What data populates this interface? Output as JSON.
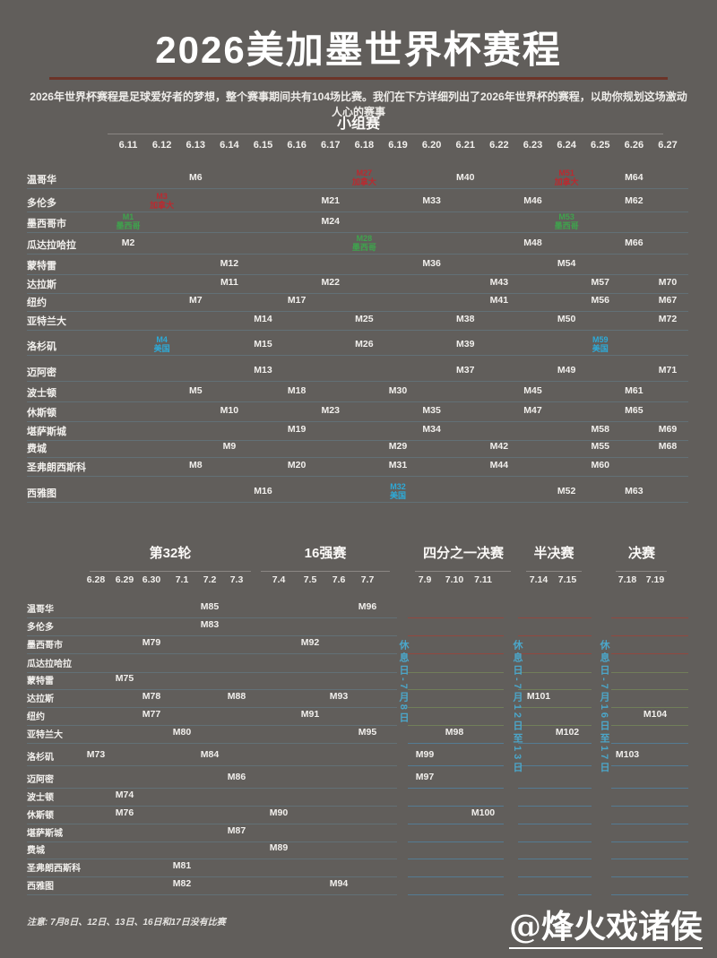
{
  "page": {
    "title": "2026美加墨世界杯赛程",
    "subtitle": "2026年世界杯赛程是足球爱好者的梦想，整个赛事期间共有104场比赛。我们在下方详细列出了2026年世界杯的赛程，以助你规划这场激动人心的赛事",
    "note": "注意: 7月8日、12日、13日、16日和17日没有比赛",
    "watermark": "@烽火戏诸侯"
  },
  "colors": {
    "background": "#615E5B",
    "title_divider": "#6C3328",
    "host_mexico": "#3FA34D",
    "host_canada": "#BA2A30",
    "host_usa": "#2EA9D6",
    "rest_day_text": "#4BA6C9"
  },
  "cities": [
    "温哥华",
    "多伦多",
    "墨西哥市",
    "瓜达拉哈拉",
    "蒙特雷",
    "达拉斯",
    "纽约",
    "亚特兰大",
    "洛杉矶",
    "迈阿密",
    "波士顿",
    "休斯顿",
    "堪萨斯城",
    "费城",
    "圣弗朗西斯科",
    "西雅图"
  ],
  "group_stage": {
    "title": "小组赛",
    "dates": [
      "6.11",
      "6.12",
      "6.13",
      "6.14",
      "6.15",
      "6.16",
      "6.17",
      "6.18",
      "6.19",
      "6.20",
      "6.21",
      "6.22",
      "6.23",
      "6.24",
      "6.25",
      "6.26",
      "6.27"
    ],
    "matches": [
      {
        "city": "温哥华",
        "date": "6.13",
        "m": "M6"
      },
      {
        "city": "温哥华",
        "date": "6.18",
        "m": "M27",
        "host": "加拿大"
      },
      {
        "city": "温哥华",
        "date": "6.21",
        "m": "M40"
      },
      {
        "city": "温哥华",
        "date": "6.24",
        "m": "M51",
        "host": "加拿大"
      },
      {
        "city": "温哥华",
        "date": "6.26",
        "m": "M64"
      },
      {
        "city": "多伦多",
        "date": "6.12",
        "m": "M3",
        "host": "加拿大"
      },
      {
        "city": "多伦多",
        "date": "6.17",
        "m": "M21"
      },
      {
        "city": "多伦多",
        "date": "6.20",
        "m": "M33"
      },
      {
        "city": "多伦多",
        "date": "6.23",
        "m": "M46"
      },
      {
        "city": "多伦多",
        "date": "6.26",
        "m": "M62"
      },
      {
        "city": "墨西哥市",
        "date": "6.11",
        "m": "M1",
        "host": "墨西哥"
      },
      {
        "city": "墨西哥市",
        "date": "6.17",
        "m": "M24"
      },
      {
        "city": "墨西哥市",
        "date": "6.24",
        "m": "M53",
        "host": "墨西哥"
      },
      {
        "city": "瓜达拉哈拉",
        "date": "6.11",
        "m": "M2"
      },
      {
        "city": "瓜达拉哈拉",
        "date": "6.18",
        "m": "M28",
        "host": "墨西哥"
      },
      {
        "city": "瓜达拉哈拉",
        "date": "6.23",
        "m": "M48"
      },
      {
        "city": "瓜达拉哈拉",
        "date": "6.26",
        "m": "M66"
      },
      {
        "city": "蒙特雷",
        "date": "6.14",
        "m": "M12"
      },
      {
        "city": "蒙特雷",
        "date": "6.20",
        "m": "M36"
      },
      {
        "city": "蒙特雷",
        "date": "6.24",
        "m": "M54"
      },
      {
        "city": "达拉斯",
        "date": "6.14",
        "m": "M11"
      },
      {
        "city": "达拉斯",
        "date": "6.17",
        "m": "M22"
      },
      {
        "city": "达拉斯",
        "date": "6.22",
        "m": "M43"
      },
      {
        "city": "达拉斯",
        "date": "6.25",
        "m": "M57"
      },
      {
        "city": "达拉斯",
        "date": "6.27",
        "m": "M70"
      },
      {
        "city": "纽约",
        "date": "6.13",
        "m": "M7"
      },
      {
        "city": "纽约",
        "date": "6.16",
        "m": "M17"
      },
      {
        "city": "纽约",
        "date": "6.22",
        "m": "M41"
      },
      {
        "city": "纽约",
        "date": "6.25",
        "m": "M56"
      },
      {
        "city": "纽约",
        "date": "6.27",
        "m": "M67"
      },
      {
        "city": "亚特兰大",
        "date": "6.15",
        "m": "M14"
      },
      {
        "city": "亚特兰大",
        "date": "6.18",
        "m": "M25"
      },
      {
        "city": "亚特兰大",
        "date": "6.21",
        "m": "M38"
      },
      {
        "city": "亚特兰大",
        "date": "6.24",
        "m": "M50"
      },
      {
        "city": "亚特兰大",
        "date": "6.27",
        "m": "M72"
      },
      {
        "city": "洛杉矶",
        "date": "6.12",
        "m": "M4",
        "host": "美国"
      },
      {
        "city": "洛杉矶",
        "date": "6.15",
        "m": "M15"
      },
      {
        "city": "洛杉矶",
        "date": "6.18",
        "m": "M26"
      },
      {
        "city": "洛杉矶",
        "date": "6.21",
        "m": "M39"
      },
      {
        "city": "洛杉矶",
        "date": "6.25",
        "m": "M59",
        "host": "美国"
      },
      {
        "city": "迈阿密",
        "date": "6.15",
        "m": "M13"
      },
      {
        "city": "迈阿密",
        "date": "6.21",
        "m": "M37"
      },
      {
        "city": "迈阿密",
        "date": "6.24",
        "m": "M49"
      },
      {
        "city": "迈阿密",
        "date": "6.27",
        "m": "M71"
      },
      {
        "city": "波士顿",
        "date": "6.13",
        "m": "M5"
      },
      {
        "city": "波士顿",
        "date": "6.16",
        "m": "M18"
      },
      {
        "city": "波士顿",
        "date": "6.19",
        "m": "M30"
      },
      {
        "city": "波士顿",
        "date": "6.23",
        "m": "M45"
      },
      {
        "city": "波士顿",
        "date": "6.26",
        "m": "M61"
      },
      {
        "city": "休斯顿",
        "date": "6.14",
        "m": "M10"
      },
      {
        "city": "休斯顿",
        "date": "6.17",
        "m": "M23"
      },
      {
        "city": "休斯顿",
        "date": "6.20",
        "m": "M35"
      },
      {
        "city": "休斯顿",
        "date": "6.23",
        "m": "M47"
      },
      {
        "city": "休斯顿",
        "date": "6.26",
        "m": "M65"
      },
      {
        "city": "堪萨斯城",
        "date": "6.16",
        "m": "M19"
      },
      {
        "city": "堪萨斯城",
        "date": "6.20",
        "m": "M34"
      },
      {
        "city": "堪萨斯城",
        "date": "6.25",
        "m": "M58"
      },
      {
        "city": "堪萨斯城",
        "date": "6.27",
        "m": "M69"
      },
      {
        "city": "费城",
        "date": "6.14",
        "m": "M9"
      },
      {
        "city": "费城",
        "date": "6.19",
        "m": "M29"
      },
      {
        "city": "费城",
        "date": "6.22",
        "m": "M42"
      },
      {
        "city": "费城",
        "date": "6.25",
        "m": "M55"
      },
      {
        "city": "费城",
        "date": "6.27",
        "m": "M68"
      },
      {
        "city": "圣弗朗西斯科",
        "date": "6.13",
        "m": "M8"
      },
      {
        "city": "圣弗朗西斯科",
        "date": "6.16",
        "m": "M20"
      },
      {
        "city": "圣弗朗西斯科",
        "date": "6.19",
        "m": "M31"
      },
      {
        "city": "圣弗朗西斯科",
        "date": "6.22",
        "m": "M44"
      },
      {
        "city": "圣弗朗西斯科",
        "date": "6.25",
        "m": "M60"
      },
      {
        "city": "西雅图",
        "date": "6.15",
        "m": "M16"
      },
      {
        "city": "西雅图",
        "date": "6.19",
        "m": "M32",
        "host": "美国"
      },
      {
        "city": "西雅图",
        "date": "6.24",
        "m": "M52"
      },
      {
        "city": "西雅图",
        "date": "6.26",
        "m": "M63"
      }
    ]
  },
  "knockout": {
    "sections": [
      {
        "title": "第32轮",
        "dates": [
          "6.28",
          "6.29",
          "6.30",
          "7.1",
          "7.2",
          "7.3"
        ]
      },
      {
        "title": "16强赛",
        "dates": [
          "7.4",
          "7.5",
          "7.6",
          "7.7"
        ]
      },
      {
        "title": "四分之一决赛",
        "dates": [
          "7.9",
          "7.10",
          "7.11"
        ]
      },
      {
        "title": "半决赛",
        "dates": [
          "7.14",
          "7.15"
        ]
      },
      {
        "title": "决赛",
        "dates": [
          "7.18",
          "7.19"
        ]
      }
    ],
    "rest_days": [
      "休息日-7月8日",
      "休息日-7月12日至13日",
      "休息日-7月16日至17日"
    ],
    "matches": [
      {
        "city": "温哥华",
        "date": "7.2",
        "m": "M85"
      },
      {
        "city": "温哥华",
        "date": "7.7",
        "m": "M96"
      },
      {
        "city": "多伦多",
        "date": "7.2",
        "m": "M83"
      },
      {
        "city": "墨西哥市",
        "date": "6.30",
        "m": "M79"
      },
      {
        "city": "墨西哥市",
        "date": "7.5",
        "m": "M92"
      },
      {
        "city": "蒙特雷",
        "date": "6.29",
        "m": "M75"
      },
      {
        "city": "达拉斯",
        "date": "6.30",
        "m": "M78"
      },
      {
        "city": "达拉斯",
        "date": "7.3",
        "m": "M88"
      },
      {
        "city": "达拉斯",
        "date": "7.6",
        "m": "M93"
      },
      {
        "city": "达拉斯",
        "date": "7.14",
        "m": "M101"
      },
      {
        "city": "纽约",
        "date": "6.30",
        "m": "M77"
      },
      {
        "city": "纽约",
        "date": "7.5",
        "m": "M91"
      },
      {
        "city": "纽约",
        "date": "7.19",
        "m": "M104"
      },
      {
        "city": "亚特兰大",
        "date": "7.1",
        "m": "M80"
      },
      {
        "city": "亚特兰大",
        "date": "7.7",
        "m": "M95"
      },
      {
        "city": "亚特兰大",
        "date": "7.10",
        "m": "M98"
      },
      {
        "city": "亚特兰大",
        "date": "7.15",
        "m": "M102"
      },
      {
        "city": "洛杉矶",
        "date": "6.28",
        "m": "M73"
      },
      {
        "city": "洛杉矶",
        "date": "7.2",
        "m": "M84"
      },
      {
        "city": "洛杉矶",
        "date": "7.9",
        "m": "M99"
      },
      {
        "city": "洛杉矶",
        "date": "7.18",
        "m": "M103"
      },
      {
        "city": "迈阿密",
        "date": "7.3",
        "m": "M86"
      },
      {
        "city": "迈阿密",
        "date": "7.9",
        "m": "M97"
      },
      {
        "city": "波士顿",
        "date": "6.29",
        "m": "M74"
      },
      {
        "city": "休斯顿",
        "date": "6.29",
        "m": "M76"
      },
      {
        "city": "休斯顿",
        "date": "7.4",
        "m": "M90"
      },
      {
        "city": "休斯顿",
        "date": "7.11",
        "m": "M100"
      },
      {
        "city": "堪萨斯城",
        "date": "7.3",
        "m": "M87"
      },
      {
        "city": "费城",
        "date": "7.4",
        "m": "M89"
      },
      {
        "city": "圣弗朗西斯科",
        "date": "7.1",
        "m": "M81"
      },
      {
        "city": "西雅图",
        "date": "7.1",
        "m": "M82"
      },
      {
        "city": "西雅图",
        "date": "7.6",
        "m": "M94"
      }
    ]
  }
}
